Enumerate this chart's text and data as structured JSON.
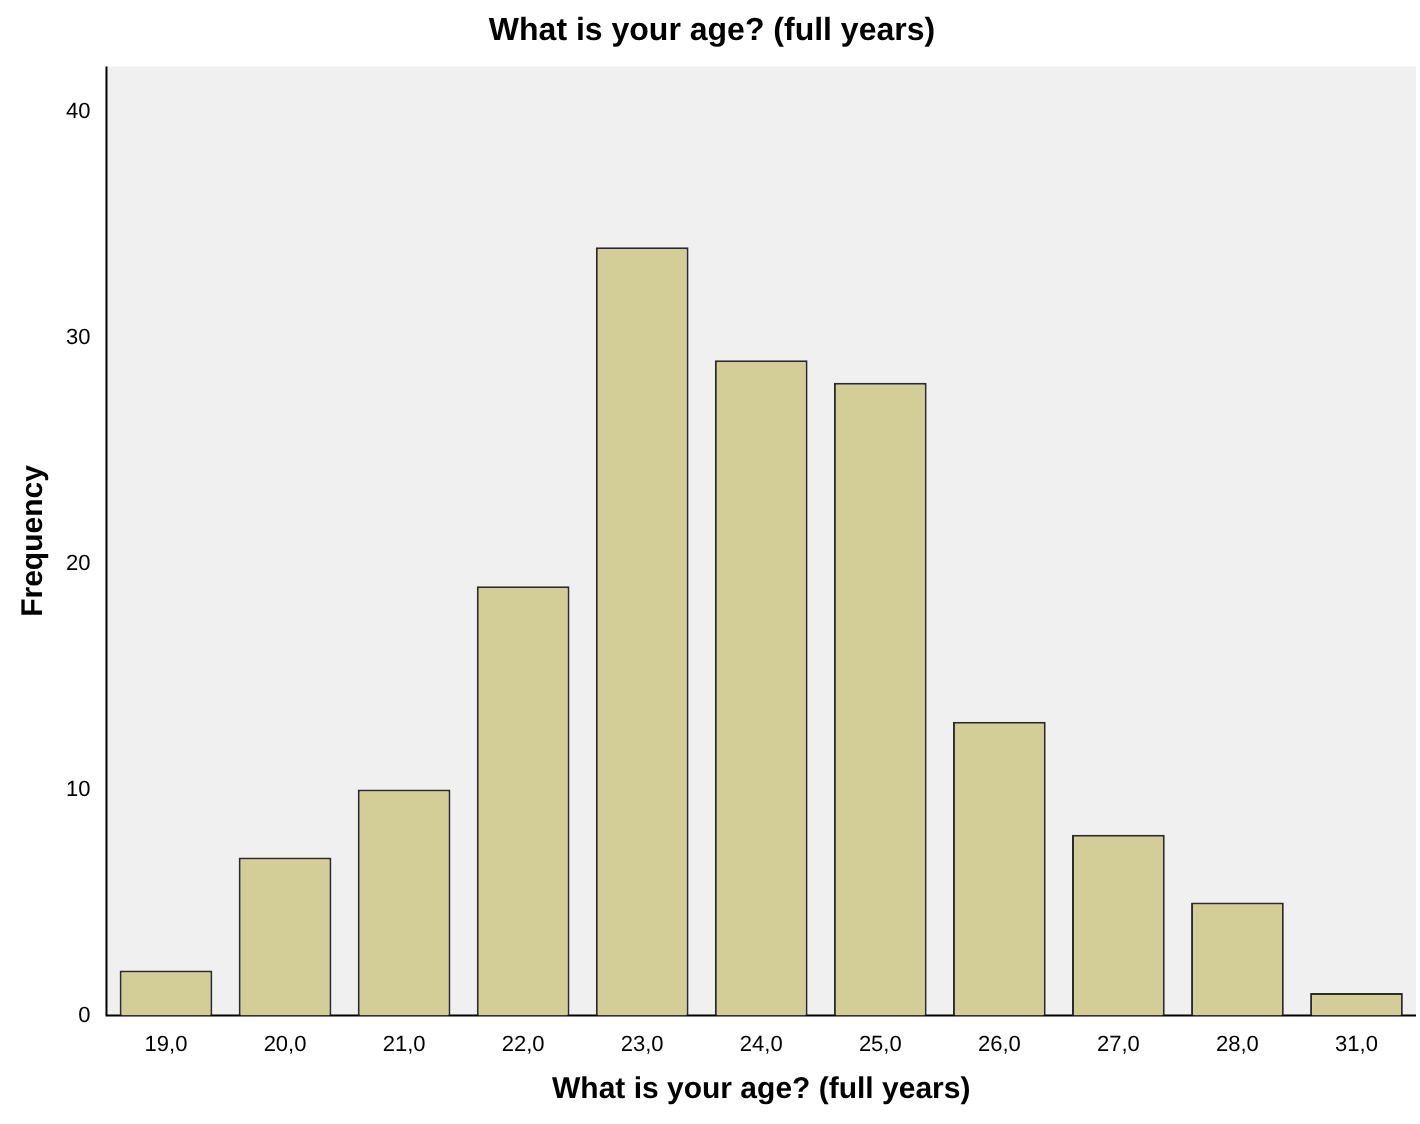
{
  "chart_data": {
    "type": "bar",
    "title": "What is your age? (full years)",
    "xlabel": "What is your age? (full years)",
    "ylabel": "Frequency",
    "categories": [
      "19,0",
      "20,0",
      "21,0",
      "22,0",
      "23,0",
      "24,0",
      "25,0",
      "26,0",
      "27,0",
      "28,0",
      "31,0"
    ],
    "values": [
      2,
      7,
      10,
      19,
      34,
      29,
      28,
      13,
      8,
      5,
      1
    ],
    "color": "#d3ce97",
    "ylim": [
      0,
      42
    ],
    "yticks": [
      0,
      10,
      20,
      30,
      40
    ],
    "grid": false,
    "legend": false
  }
}
